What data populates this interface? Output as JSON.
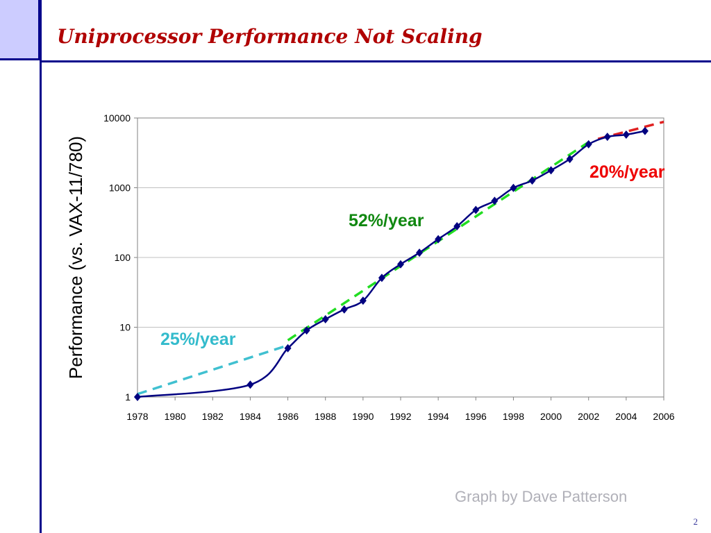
{
  "slide": {
    "title": "Uniprocessor Performance Not Scaling",
    "credit": "Graph by Dave Patterson",
    "page_number": "2"
  },
  "colors": {
    "frame": "#00008b",
    "corner_fill": "#ccccff",
    "title": "#b00000",
    "series": "#000080",
    "trend_25": "#40c0d0",
    "trend_52": "#22dd22",
    "trend_20": "#e02020",
    "label_25": "#33bbcc",
    "label_52": "#118811",
    "label_20": "#ee0000"
  },
  "chart_data": {
    "type": "line",
    "title": "",
    "xlabel": "",
    "ylabel": "Performance (vs. VAX-11/780)",
    "yscale": "log",
    "xlim": [
      1978,
      2006
    ],
    "ylim": [
      1,
      10000
    ],
    "grid": "horizontal",
    "x_ticks": [
      "1978",
      "1980",
      "1982",
      "1984",
      "1986",
      "1988",
      "1990",
      "1992",
      "1994",
      "1996",
      "1998",
      "2000",
      "2002",
      "2004",
      "2006"
    ],
    "y_ticks": [
      "1",
      "10",
      "100",
      "1000",
      "10000"
    ],
    "series": [
      {
        "x": [
          1978,
          1984,
          1986,
          1987,
          1988,
          1989,
          1990,
          1991,
          1992,
          1993,
          1994,
          1995,
          1996,
          1997,
          1998,
          1999,
          2000,
          2001,
          2002,
          2003,
          2004,
          2005
        ],
        "y": [
          1,
          1.5,
          5,
          9,
          13,
          18,
          24,
          51,
          80,
          117,
          183,
          280,
          481,
          649,
          993,
          1267,
          1779,
          2584,
          4195,
          5364,
          5764,
          6505
        ]
      }
    ],
    "trend_lines": [
      {
        "label": "25%/year",
        "x": [
          1978,
          1986
        ],
        "y": [
          1.1,
          5.5
        ]
      },
      {
        "label": "52%/year",
        "x": [
          1986,
          2002
        ],
        "y": [
          6.5,
          4500
        ]
      },
      {
        "label": "20%/year",
        "x": [
          2002.5,
          2006
        ],
        "y": [
          5000,
          8800
        ]
      }
    ]
  }
}
